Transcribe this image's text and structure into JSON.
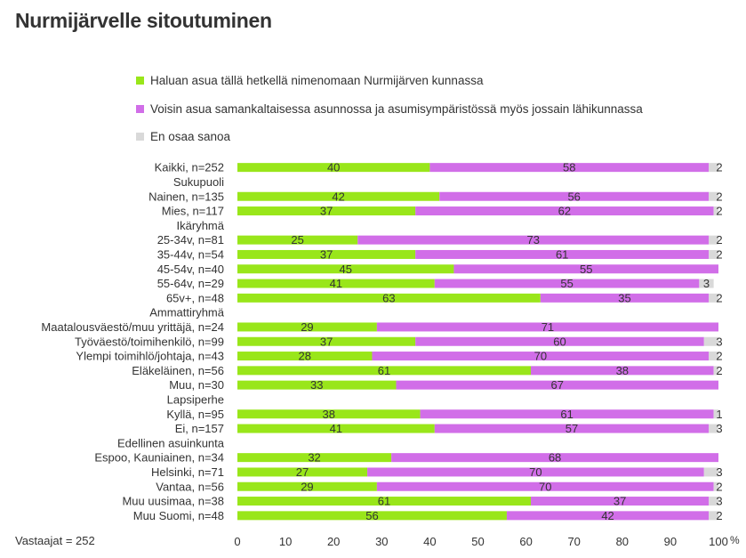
{
  "title": "Nurmijärvelle sitoutuminen",
  "footnote": "Vastaajat = 252",
  "colors": {
    "s1": "#99e61a",
    "s2": "#d16ee8",
    "s3": "#d9d9d9"
  },
  "chart_data": {
    "type": "bar",
    "orientation": "horizontal",
    "stacked": true,
    "xlim": [
      0,
      100
    ],
    "xticks": [
      "0",
      "10",
      "20",
      "30",
      "40",
      "50",
      "60",
      "70",
      "80",
      "90",
      "100"
    ],
    "xunit": "%",
    "grid": false,
    "legend": "top",
    "series": [
      {
        "name": "Haluan asua tällä hetkellä nimenomaan Nurmijärven kunnassa"
      },
      {
        "name": "Voisin asua samankaltaisessa asunnossa ja asumisympäristössä myös jossain lähikunnassa"
      },
      {
        "name": "En osaa sanoa"
      }
    ],
    "rows": [
      {
        "label": "Kaikki, n=252",
        "values": [
          40,
          58,
          2
        ]
      },
      {
        "label": "Sukupuoli",
        "group": true
      },
      {
        "label": "Nainen, n=135",
        "values": [
          42,
          56,
          2
        ]
      },
      {
        "label": "Mies, n=117",
        "values": [
          37,
          62,
          2
        ]
      },
      {
        "label": "Ikäryhmä",
        "group": true
      },
      {
        "label": "25-34v, n=81",
        "values": [
          25,
          73,
          2
        ]
      },
      {
        "label": "35-44v, n=54",
        "values": [
          37,
          61,
          2
        ]
      },
      {
        "label": "45-54v, n=40",
        "values": [
          45,
          55,
          null
        ]
      },
      {
        "label": "55-64v, n=29",
        "values": [
          41,
          55,
          3
        ]
      },
      {
        "label": "65v+, n=48",
        "values": [
          63,
          35,
          2
        ]
      },
      {
        "label": "Ammattiryhmä",
        "group": true
      },
      {
        "label": "Maatalousväestö/muu yrittäjä, n=24",
        "values": [
          29,
          71,
          null
        ]
      },
      {
        "label": "Työväestö/toimihenkilö, n=99",
        "values": [
          37,
          60,
          3
        ]
      },
      {
        "label": "Ylempi toimihlö/johtaja, n=43",
        "values": [
          28,
          70,
          2
        ]
      },
      {
        "label": "Eläkeläinen, n=56",
        "values": [
          61,
          38,
          2
        ]
      },
      {
        "label": "Muu, n=30",
        "values": [
          33,
          67,
          null
        ]
      },
      {
        "label": "Lapsiperhe",
        "group": true
      },
      {
        "label": "Kyllä, n=95",
        "values": [
          38,
          61,
          1
        ]
      },
      {
        "label": "Ei, n=157",
        "values": [
          41,
          57,
          3
        ]
      },
      {
        "label": "Edellinen asuinkunta",
        "group": true
      },
      {
        "label": "Espoo, Kauniainen, n=34",
        "values": [
          32,
          68,
          null
        ]
      },
      {
        "label": "Helsinki, n=71",
        "values": [
          27,
          70,
          3
        ]
      },
      {
        "label": "Vantaa, n=56",
        "values": [
          29,
          70,
          2
        ]
      },
      {
        "label": "Muu uusimaa, n=38",
        "values": [
          61,
          37,
          3
        ]
      },
      {
        "label": "Muu Suomi, n=48",
        "values": [
          56,
          42,
          2
        ]
      }
    ]
  }
}
